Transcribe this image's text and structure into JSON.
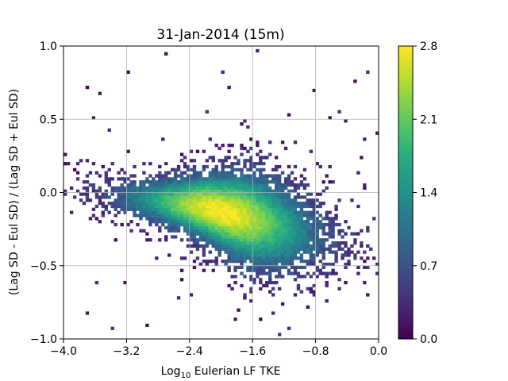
{
  "chart_data": {
    "type": "heatmap",
    "title": "31-Jan-2014 (15m)",
    "xlabel_prefix": "Log",
    "xlabel_sub": "10",
    "xlabel_suffix": " Eulerian LF TKE",
    "ylabel": "(Lag SD - Eul SD) / (Lag SD + Eul SD)",
    "xlim": [
      -4.0,
      0.0
    ],
    "ylim": [
      -1.0,
      1.0
    ],
    "x_ticks": [
      "−4.0",
      "−3.2",
      "−2.4",
      "−1.6",
      "−0.8",
      "0.0"
    ],
    "y_ticks": [
      "−1.0",
      "−0.5",
      "0.0",
      "0.5",
      "1.0"
    ],
    "grid": true,
    "colormap": "viridis",
    "colorbar": {
      "range": [
        0.0,
        2.8
      ],
      "ticks": [
        "0.0",
        "0.7",
        "1.4",
        "2.1",
        "2.8"
      ]
    },
    "density_model": {
      "description_units": "log10 counts",
      "ridge_start": [
        -3.6,
        0.0
      ],
      "ridge_peak": [
        -2.2,
        -0.1
      ],
      "ridge_end": [
        -0.4,
        -0.35
      ],
      "peak_value": 2.8
    }
  }
}
